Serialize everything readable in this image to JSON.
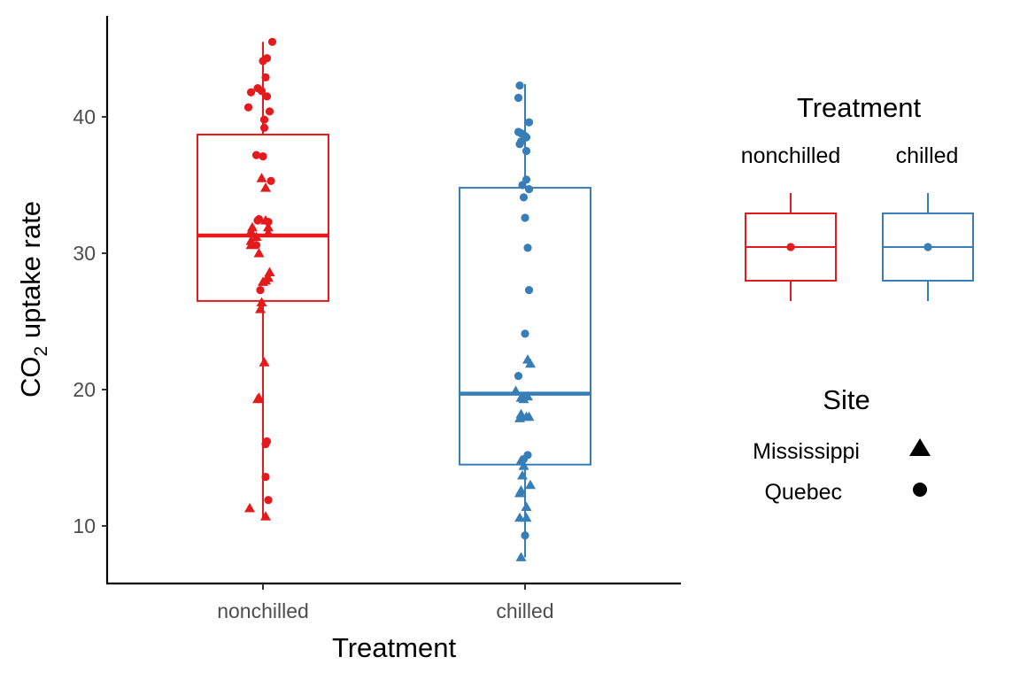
{
  "chart_data": {
    "type": "box",
    "xlabel": "Treatment",
    "ylabel": "CO",
    "ylabel_subscript": "2",
    "ylabel_suffix": " uptake rate",
    "ylim": [
      6,
      47
    ],
    "yticks": [
      10,
      20,
      30,
      40
    ],
    "categories": [
      "nonchilled",
      "chilled"
    ],
    "colors": {
      "nonchilled": "#e41a1c",
      "chilled": "#377eb8"
    },
    "boxes": [
      {
        "category": "nonchilled",
        "lower_whisker": 10.6,
        "q1": 26.5,
        "median": 31.3,
        "q3": 38.7,
        "upper_whisker": 45.5
      },
      {
        "category": "chilled",
        "lower_whisker": 7.7,
        "q1": 14.5,
        "median": 19.7,
        "q3": 34.8,
        "upper_whisker": 42.4
      }
    ],
    "points": {
      "nonchilled": {
        "Quebec": [
          [
            0.07,
            45.5
          ],
          [
            0.0,
            44.1
          ],
          [
            0.03,
            44.3
          ],
          [
            0.02,
            42.9
          ],
          [
            -0.04,
            42.1
          ],
          [
            -0.01,
            41.9
          ],
          [
            0.03,
            41.5
          ],
          [
            -0.09,
            41.8
          ],
          [
            -0.11,
            40.7
          ],
          [
            0.05,
            40.4
          ],
          [
            0.01,
            39.8
          ],
          [
            0.01,
            39.2
          ],
          [
            -0.05,
            37.2
          ],
          [
            0.0,
            37.1
          ],
          [
            0.06,
            35.3
          ],
          [
            0.04,
            32.3
          ],
          [
            -0.04,
            32.4
          ],
          [
            -0.03,
            32.5
          ],
          [
            -0.05,
            30.6
          ],
          [
            -0.02,
            27.3
          ],
          [
            0.03,
            16.2
          ],
          [
            0.02,
            16.0
          ],
          [
            0.02,
            13.6
          ],
          [
            0.04,
            11.9
          ]
        ],
        "Mississippi": [
          [
            -0.01,
            35.5
          ],
          [
            0.02,
            34.8
          ],
          [
            0.02,
            32.4
          ],
          [
            0.04,
            31.9
          ],
          [
            0.04,
            31.5
          ],
          [
            -0.08,
            31.9
          ],
          [
            -0.09,
            31.6
          ],
          [
            -0.05,
            31.2
          ],
          [
            -0.09,
            30.9
          ],
          [
            -0.09,
            30.6
          ],
          [
            -0.03,
            30.0
          ],
          [
            0.05,
            28.6
          ],
          [
            0.04,
            28.2
          ],
          [
            0.0,
            27.9
          ],
          [
            0.02,
            28.0
          ],
          [
            -0.01,
            26.4
          ],
          [
            -0.02,
            25.9
          ],
          [
            0.01,
            22.0
          ],
          [
            -0.03,
            19.4
          ],
          [
            -0.04,
            19.3
          ],
          [
            -0.1,
            11.3
          ],
          [
            0.02,
            10.7
          ]
        ]
      },
      "chilled": {
        "Quebec": [
          [
            -0.04,
            42.3
          ],
          [
            -0.05,
            41.4
          ],
          [
            0.03,
            39.6
          ],
          [
            -0.05,
            38.9
          ],
          [
            -0.03,
            38.8
          ],
          [
            0.0,
            38.6
          ],
          [
            0.01,
            38.5
          ],
          [
            -0.03,
            38.2
          ],
          [
            -0.04,
            38.0
          ],
          [
            0.01,
            37.5
          ],
          [
            0.01,
            35.4
          ],
          [
            -0.02,
            35.0
          ],
          [
            0.03,
            34.7
          ],
          [
            -0.01,
            34.1
          ],
          [
            0.0,
            32.6
          ],
          [
            0.02,
            30.4
          ],
          [
            0.03,
            27.3
          ],
          [
            0.0,
            24.1
          ],
          [
            -0.05,
            21.0
          ],
          [
            0.02,
            15.2
          ],
          [
            -0.01,
            14.9
          ],
          [
            0.0,
            9.3
          ]
        ],
        "Mississippi": [
          [
            0.02,
            22.2
          ],
          [
            0.04,
            21.9
          ],
          [
            -0.01,
            19.3
          ],
          [
            0.02,
            19.5
          ],
          [
            -0.07,
            19.9
          ],
          [
            -0.03,
            19.4
          ],
          [
            -0.03,
            18.2
          ],
          [
            0.01,
            18.0
          ],
          [
            0.03,
            18.0
          ],
          [
            -0.04,
            17.9
          ],
          [
            -0.03,
            14.8
          ],
          [
            -0.01,
            14.4
          ],
          [
            -0.02,
            13.7
          ],
          [
            -0.03,
            12.6
          ],
          [
            -0.04,
            12.4
          ],
          [
            0.04,
            13.0
          ],
          [
            0.01,
            11.4
          ],
          [
            -0.04,
            10.6
          ],
          [
            0.01,
            10.6
          ],
          [
            -0.03,
            7.7
          ]
        ]
      }
    },
    "legends": [
      {
        "title": "Treatment",
        "type": "box",
        "entries": [
          "nonchilled",
          "chilled"
        ]
      },
      {
        "title": "Site",
        "type": "shape",
        "entries": [
          {
            "label": "Mississippi",
            "shape": "triangle"
          },
          {
            "label": "Quebec",
            "shape": "circle"
          }
        ]
      }
    ]
  }
}
